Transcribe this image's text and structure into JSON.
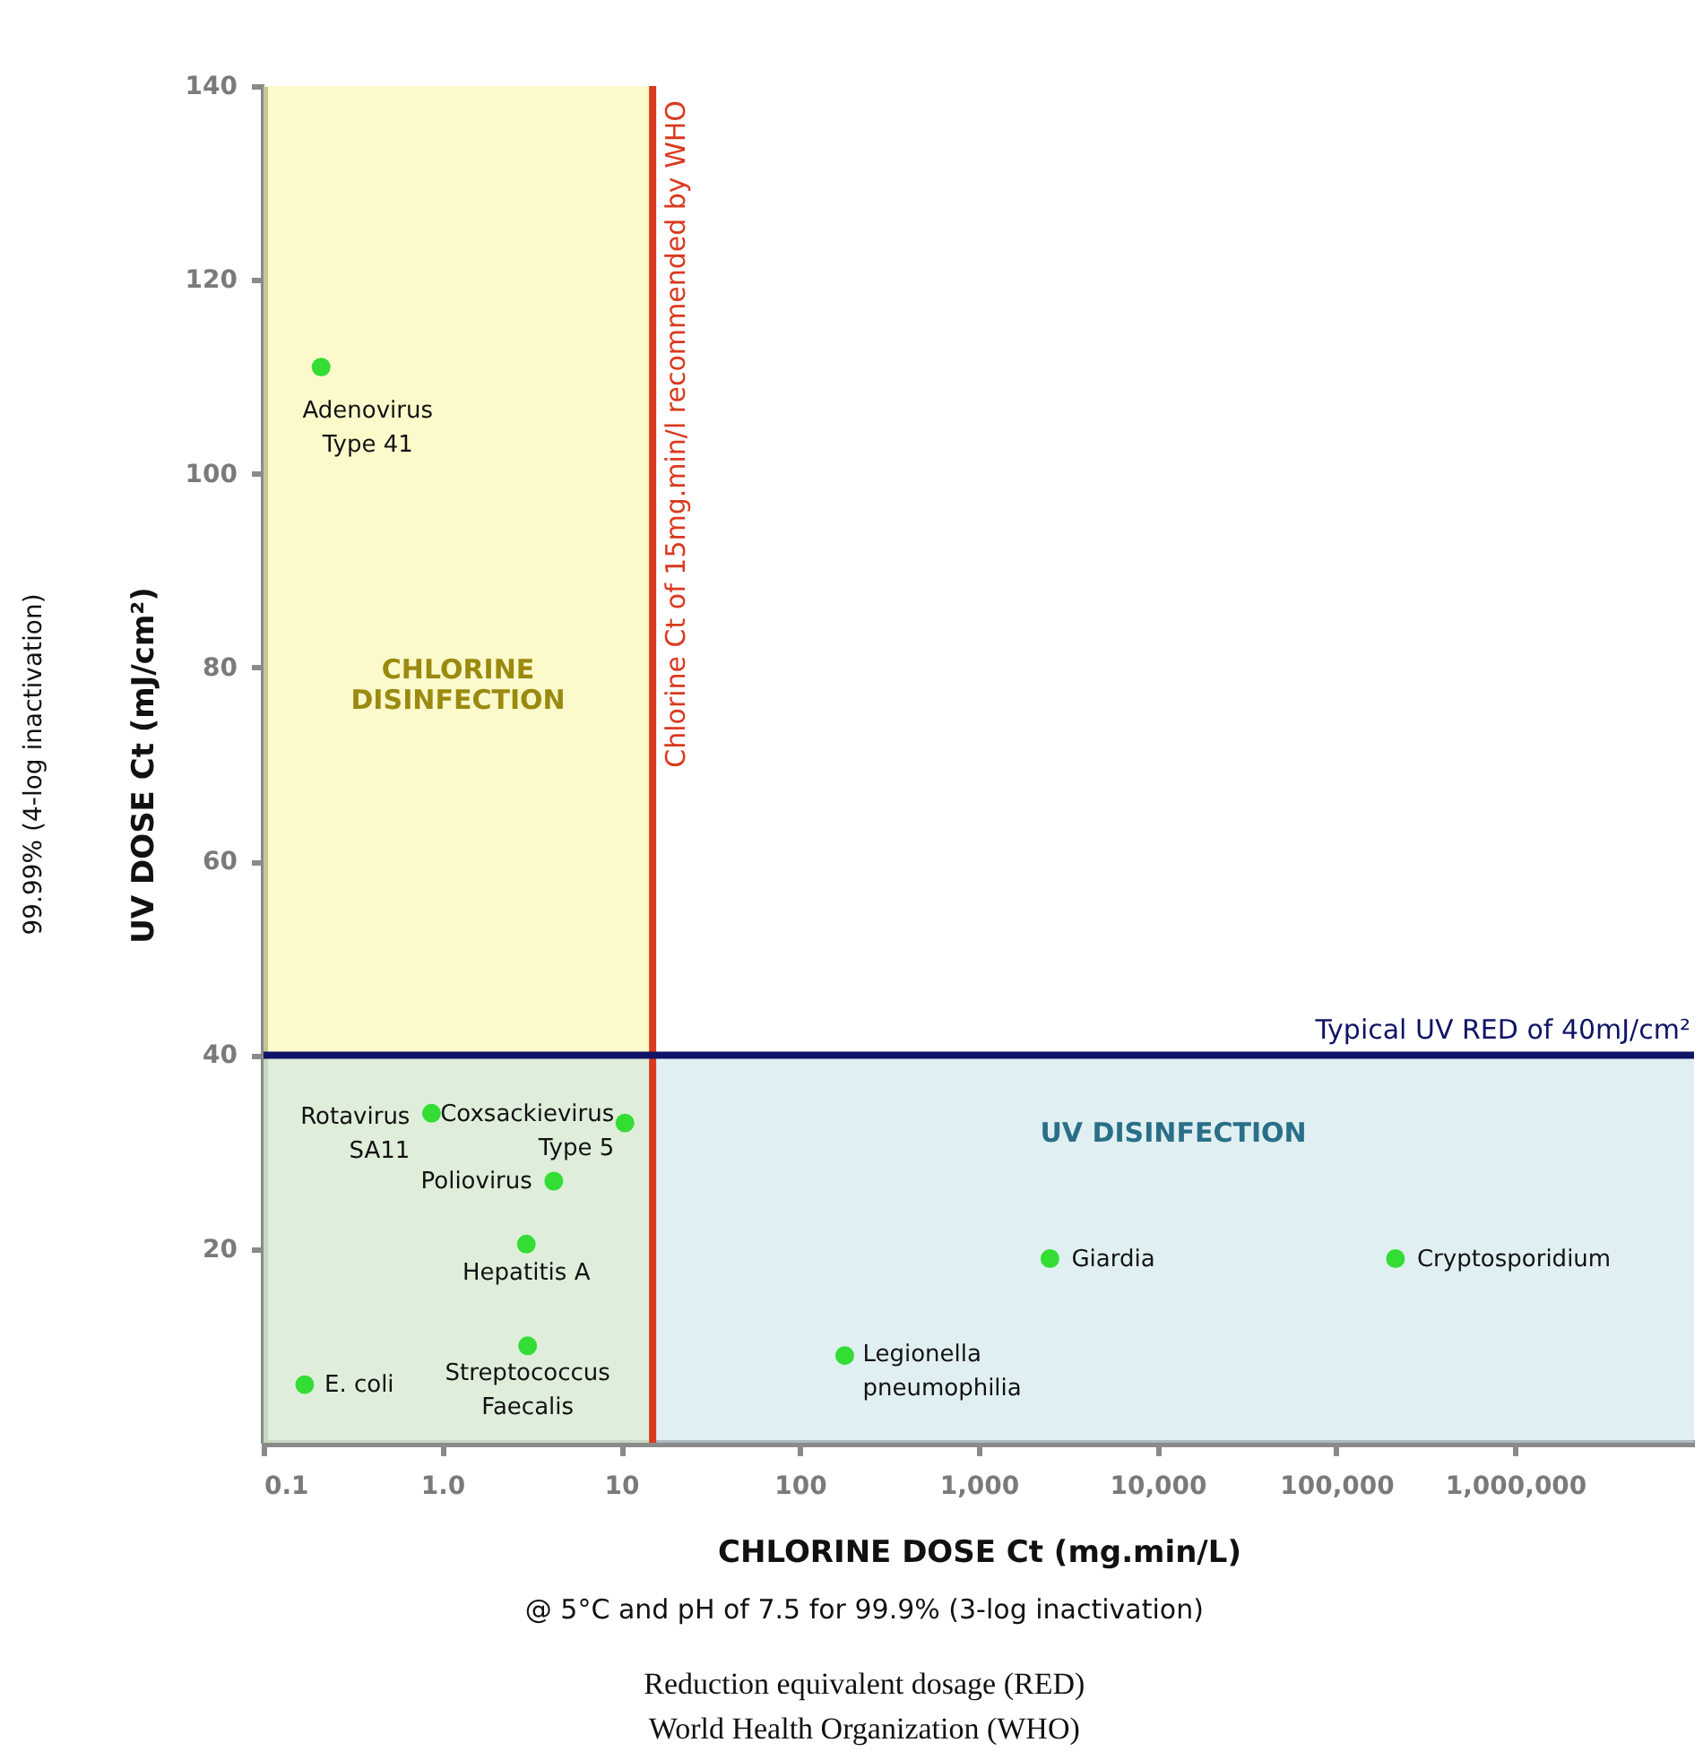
{
  "chart_data": {
    "type": "scatter",
    "xlabel": "CHLORINE DOSE Ct (mg.min/L)",
    "ylabel": "UV DOSE Ct (mJ/cm²)",
    "log": "x",
    "grid": false,
    "marker": "circle",
    "xlim": [
      0.1,
      10000000
    ],
    "ylim": [
      0,
      140
    ],
    "xticks": [
      0.1,
      {
        "value": 1,
        "label": "1.0"
      },
      10,
      100,
      {
        "value": 1000,
        "label": "1,000"
      },
      {
        "value": 10000,
        "label": "10,000"
      },
      {
        "value": 100000,
        "label": "100,000"
      },
      {
        "value": 1000000,
        "label": "1,000,000"
      }
    ],
    "yticks": [
      20,
      40,
      60,
      80,
      100,
      120,
      140
    ],
    "series": [
      {
        "color": "#33dd33",
        "x": [
          0.21,
          0.87,
          10.5,
          4.2,
          2.95,
          3.0,
          0.17,
          178,
          2500,
          214000
        ],
        "values": [
          111,
          34,
          33,
          27,
          20.5,
          10,
          6,
          9,
          19,
          19
        ]
      }
    ],
    "bands": [
      {
        "axis": "x",
        "from": 0.1,
        "to": 15,
        "label": "CHLORINE\nDISINFECTION",
        "color": "#faf5a0"
      },
      {
        "axis": "y",
        "from": 0,
        "to": 40,
        "label": "UV DISINFECTION",
        "color": "#c6e3e8"
      }
    ],
    "ref_lines": [
      {
        "axis": "x",
        "value": 15,
        "label": "Chlorine Ct of 15mg.min/l recommended by WHO",
        "color": "#d93a1e"
      },
      {
        "axis": "y",
        "value": 40,
        "label": "Typical UV RED of 40mJ/cm²",
        "color": "#0f1466"
      }
    ],
    "annotations": [
      {
        "text": "Adenovirus\nType 41",
        "x": 0.21,
        "y": 111
      },
      {
        "text": "Rotavirus\nSA11",
        "x": 0.87,
        "y": 34
      },
      {
        "text": "Coxsackievirus\nType 5",
        "x": 10.5,
        "y": 33
      },
      {
        "text": "Poliovirus",
        "x": 4.2,
        "y": 27
      },
      {
        "text": "Hepatitis A",
        "x": 2.95,
        "y": 20.5
      },
      {
        "text": "Streptococcus\nFaecalis",
        "x": 3.0,
        "y": 10
      },
      {
        "text": "E. coli",
        "x": 0.17,
        "y": 6
      },
      {
        "text": "Legionella\npneumophilia",
        "x": 178,
        "y": 9
      },
      {
        "text": "Giardia",
        "x": 2500,
        "y": 19
      },
      {
        "text": "Cryptosporidium",
        "x": 214000,
        "y": 19
      },
      "99.99% (4-log inactivation)",
      "@ 5°C and pH of 7.5 for 99.9% (3-log inactivation)",
      "Reduction equivalent dosage (RED)",
      "World Health Organization (WHO)"
    ]
  }
}
